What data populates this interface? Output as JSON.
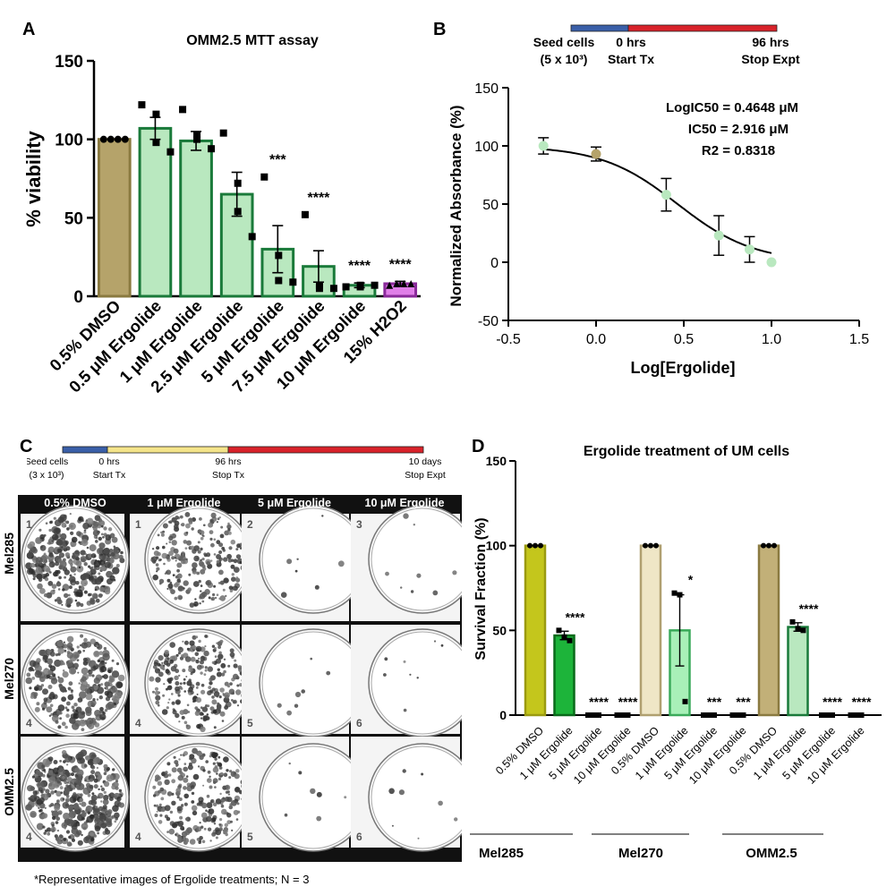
{
  "panel_labels": [
    "A",
    "B",
    "C",
    "D"
  ],
  "chart_data": [
    {
      "panel": "A",
      "type": "bar",
      "title": "OMM2.5 MTT assay",
      "ylabel": "% viability",
      "ylim": [
        0,
        150
      ],
      "yticks": [
        "0",
        "50",
        "100",
        "150"
      ],
      "categories": [
        "0.5% DMSO",
        "0.5 μM Ergolide",
        "1 μM Ergolide",
        "2.5 μM Ergolide",
        "5 μM Ergolide",
        "7.5 μM Ergolide",
        "10 μM Ergolide",
        "15% H2O2"
      ],
      "values": [
        100,
        107,
        99,
        65,
        30,
        19,
        7,
        8
      ],
      "errors": [
        0,
        7,
        6,
        14,
        15,
        10,
        1.5,
        1.5
      ],
      "points": [
        [
          100,
          100,
          100,
          100
        ],
        [
          122,
          116,
          98,
          92
        ],
        [
          119,
          103,
          100,
          94
        ],
        [
          104,
          72,
          54,
          38
        ],
        [
          76,
          26,
          10,
          9
        ],
        [
          52,
          7,
          5,
          5
        ],
        [
          6,
          6,
          7,
          7
        ],
        [
          7,
          8,
          8,
          8
        ]
      ],
      "significance": [
        "",
        "",
        "",
        "",
        "***",
        "****",
        "****",
        "****"
      ],
      "colors": [
        "#b5a36a",
        "#b9e8bf",
        "#b9e8bf",
        "#b9e8bf",
        "#b9e8bf",
        "#b9e8bf",
        "#b9e8bf",
        "#e07fe8"
      ],
      "edge_colors": [
        "#8a7a40",
        "#1a7a3a",
        "#1a7a3a",
        "#1a7a3a",
        "#1a7a3a",
        "#1a7a3a",
        "#1a7a3a",
        "#8a2a9a"
      ]
    },
    {
      "panel": "B",
      "type": "scatter",
      "xlabel": "Log[Ergolide]",
      "ylabel": "Normalized Absorbance (%)",
      "xlim": [
        -0.5,
        1.5
      ],
      "ylim": [
        -50,
        150
      ],
      "xticks": [
        "-0.5",
        "0.0",
        "0.5",
        "1.0",
        "1.5"
      ],
      "yticks": [
        "-50",
        "0",
        "50",
        "100",
        "150"
      ],
      "x": [
        -0.3,
        0.0,
        0.4,
        0.7,
        0.875,
        1.0
      ],
      "y": [
        100,
        93,
        58,
        23,
        11,
        0
      ],
      "errors": [
        7,
        6,
        14,
        17,
        11,
        0
      ],
      "point_colors": [
        "#b9e8bf",
        "#b5a36a",
        "#b9e8bf",
        "#b9e8bf",
        "#b9e8bf",
        "#b9e8bf"
      ],
      "fit": {
        "top": 100,
        "bottom": 0,
        "logIC50": 0.4648,
        "hill": 2.0
      },
      "annotations": [
        "LogIC50 = 0.4648 μM",
        "IC50 = 2.916 μM",
        "R2 = 0.8318"
      ]
    },
    {
      "panel": "D",
      "type": "bar",
      "title": "Ergolide treatment of UM cells",
      "ylabel": "Survival Fraction (%)",
      "ylim": [
        0,
        150
      ],
      "yticks": [
        "0",
        "50",
        "100",
        "150"
      ],
      "categories": [
        "0.5% DMSO",
        "1 μM Ergolide",
        "5 μM Ergolide",
        "10 μM Ergolide",
        "0.5% DMSO",
        "1 μM Ergolide",
        "5 μM Ergolide",
        "10 μM Ergolide",
        "0.5% DMSO",
        "1 μM Ergolide",
        "5 μM Ergolide",
        "10 μM Ergolide"
      ],
      "groups": [
        "Mel285",
        "Mel270",
        "OMM2.5"
      ],
      "values": [
        100,
        47,
        0,
        0,
        100,
        50,
        0,
        0,
        100,
        52,
        0,
        0
      ],
      "errors": [
        0,
        2.5,
        0,
        0,
        0,
        21,
        0,
        0,
        0,
        2.5,
        0,
        0
      ],
      "points": [
        [
          100,
          100,
          100
        ],
        [
          50,
          46,
          44
        ],
        [
          0,
          0,
          0
        ],
        [
          0,
          0,
          0
        ],
        [
          100,
          100,
          100
        ],
        [
          72,
          71,
          8
        ],
        [
          0,
          0,
          0
        ],
        [
          0,
          0,
          0
        ],
        [
          100,
          100,
          100
        ],
        [
          55,
          51,
          50
        ],
        [
          0,
          0,
          0
        ],
        [
          0,
          0,
          0
        ]
      ],
      "significance": [
        "",
        "****",
        "****",
        "****",
        "",
        "*",
        "***",
        "***",
        "",
        "****",
        "****",
        "****"
      ],
      "colors": [
        "#c4c61c",
        "#1db43a",
        "#ffffff",
        "#ffffff",
        "#efe6c6",
        "#a8f0b8",
        "#ffffff",
        "#ffffff",
        "#c2b078",
        "#b9e8bf",
        "#ffffff",
        "#ffffff"
      ],
      "edge_colors": [
        "#9a9a10",
        "#0a6a1a",
        "#000000",
        "#000000",
        "#b0a070",
        "#3aaa5a",
        "#000000",
        "#000000",
        "#8a7a40",
        "#1a7a3a",
        "#000000",
        "#000000"
      ]
    }
  ],
  "timeline_b": {
    "labels": [
      "Seed cells",
      "(5 x 10³)",
      "0 hrs",
      "Start Tx",
      "96 hrs",
      "Stop Expt"
    ]
  },
  "timeline_c": {
    "labels": [
      "Seed cells",
      "(3 x 10³)",
      "0 hrs",
      "Start Tx",
      "96 hrs",
      "Stop Tx",
      "10 days",
      "Stop Expt"
    ]
  },
  "plates": {
    "columns": [
      "0.5% DMSO",
      "1 μM Ergolide",
      "5 μM Ergolide",
      "10 μM Ergolide"
    ],
    "rows": [
      "Mel285",
      "Mel270",
      "OMM2.5"
    ],
    "well_numbers": [
      [
        "1",
        "1",
        "2",
        "3"
      ],
      [
        "4",
        "4",
        "5",
        "6"
      ],
      [
        "4",
        "4",
        "5",
        "6"
      ]
    ]
  },
  "footnote": "*Representative images of Ergolide treatments; N = 3"
}
